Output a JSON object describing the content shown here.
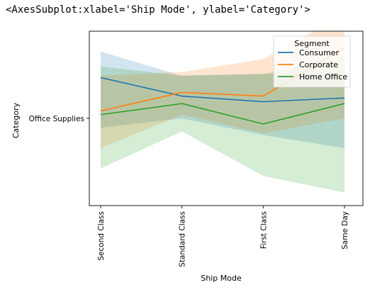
{
  "output_repr": "<AxesSubplot:xlabel='Ship Mode', ylabel='Category'>",
  "chart_data": {
    "type": "line",
    "xlabel": "Ship Mode",
    "ylabel": "Category",
    "categories": [
      "Second Class",
      "Standard Class",
      "First Class",
      "Same Day"
    ],
    "y_tick_labels": [
      "Office Supplies"
    ],
    "ylim": [
      -0.47,
      0.47
    ],
    "grid": false,
    "legend": {
      "title": "Segment",
      "placement": "top-right"
    },
    "series": [
      {
        "name": "Consumer",
        "color": "#1f77b4",
        "values": [
          0.22,
          0.12,
          0.09,
          0.11
        ],
        "ci_low": [
          -0.05,
          0.0,
          -0.09,
          -0.16
        ],
        "ci_high": [
          0.36,
          0.23,
          0.24,
          0.24
        ]
      },
      {
        "name": "Corporate",
        "color": "#ff7f0e",
        "values": [
          0.04,
          0.14,
          0.12,
          0.38
        ],
        "ci_low": [
          -0.16,
          0.02,
          -0.08,
          0.0
        ],
        "ci_high": [
          0.23,
          0.25,
          0.32,
          0.56
        ]
      },
      {
        "name": "Home Office",
        "color": "#2ca02c",
        "values": [
          0.02,
          0.08,
          -0.03,
          0.08
        ],
        "ci_low": [
          -0.27,
          -0.07,
          -0.31,
          -0.4
        ],
        "ci_high": [
          0.28,
          0.23,
          0.24,
          0.33
        ]
      }
    ]
  }
}
